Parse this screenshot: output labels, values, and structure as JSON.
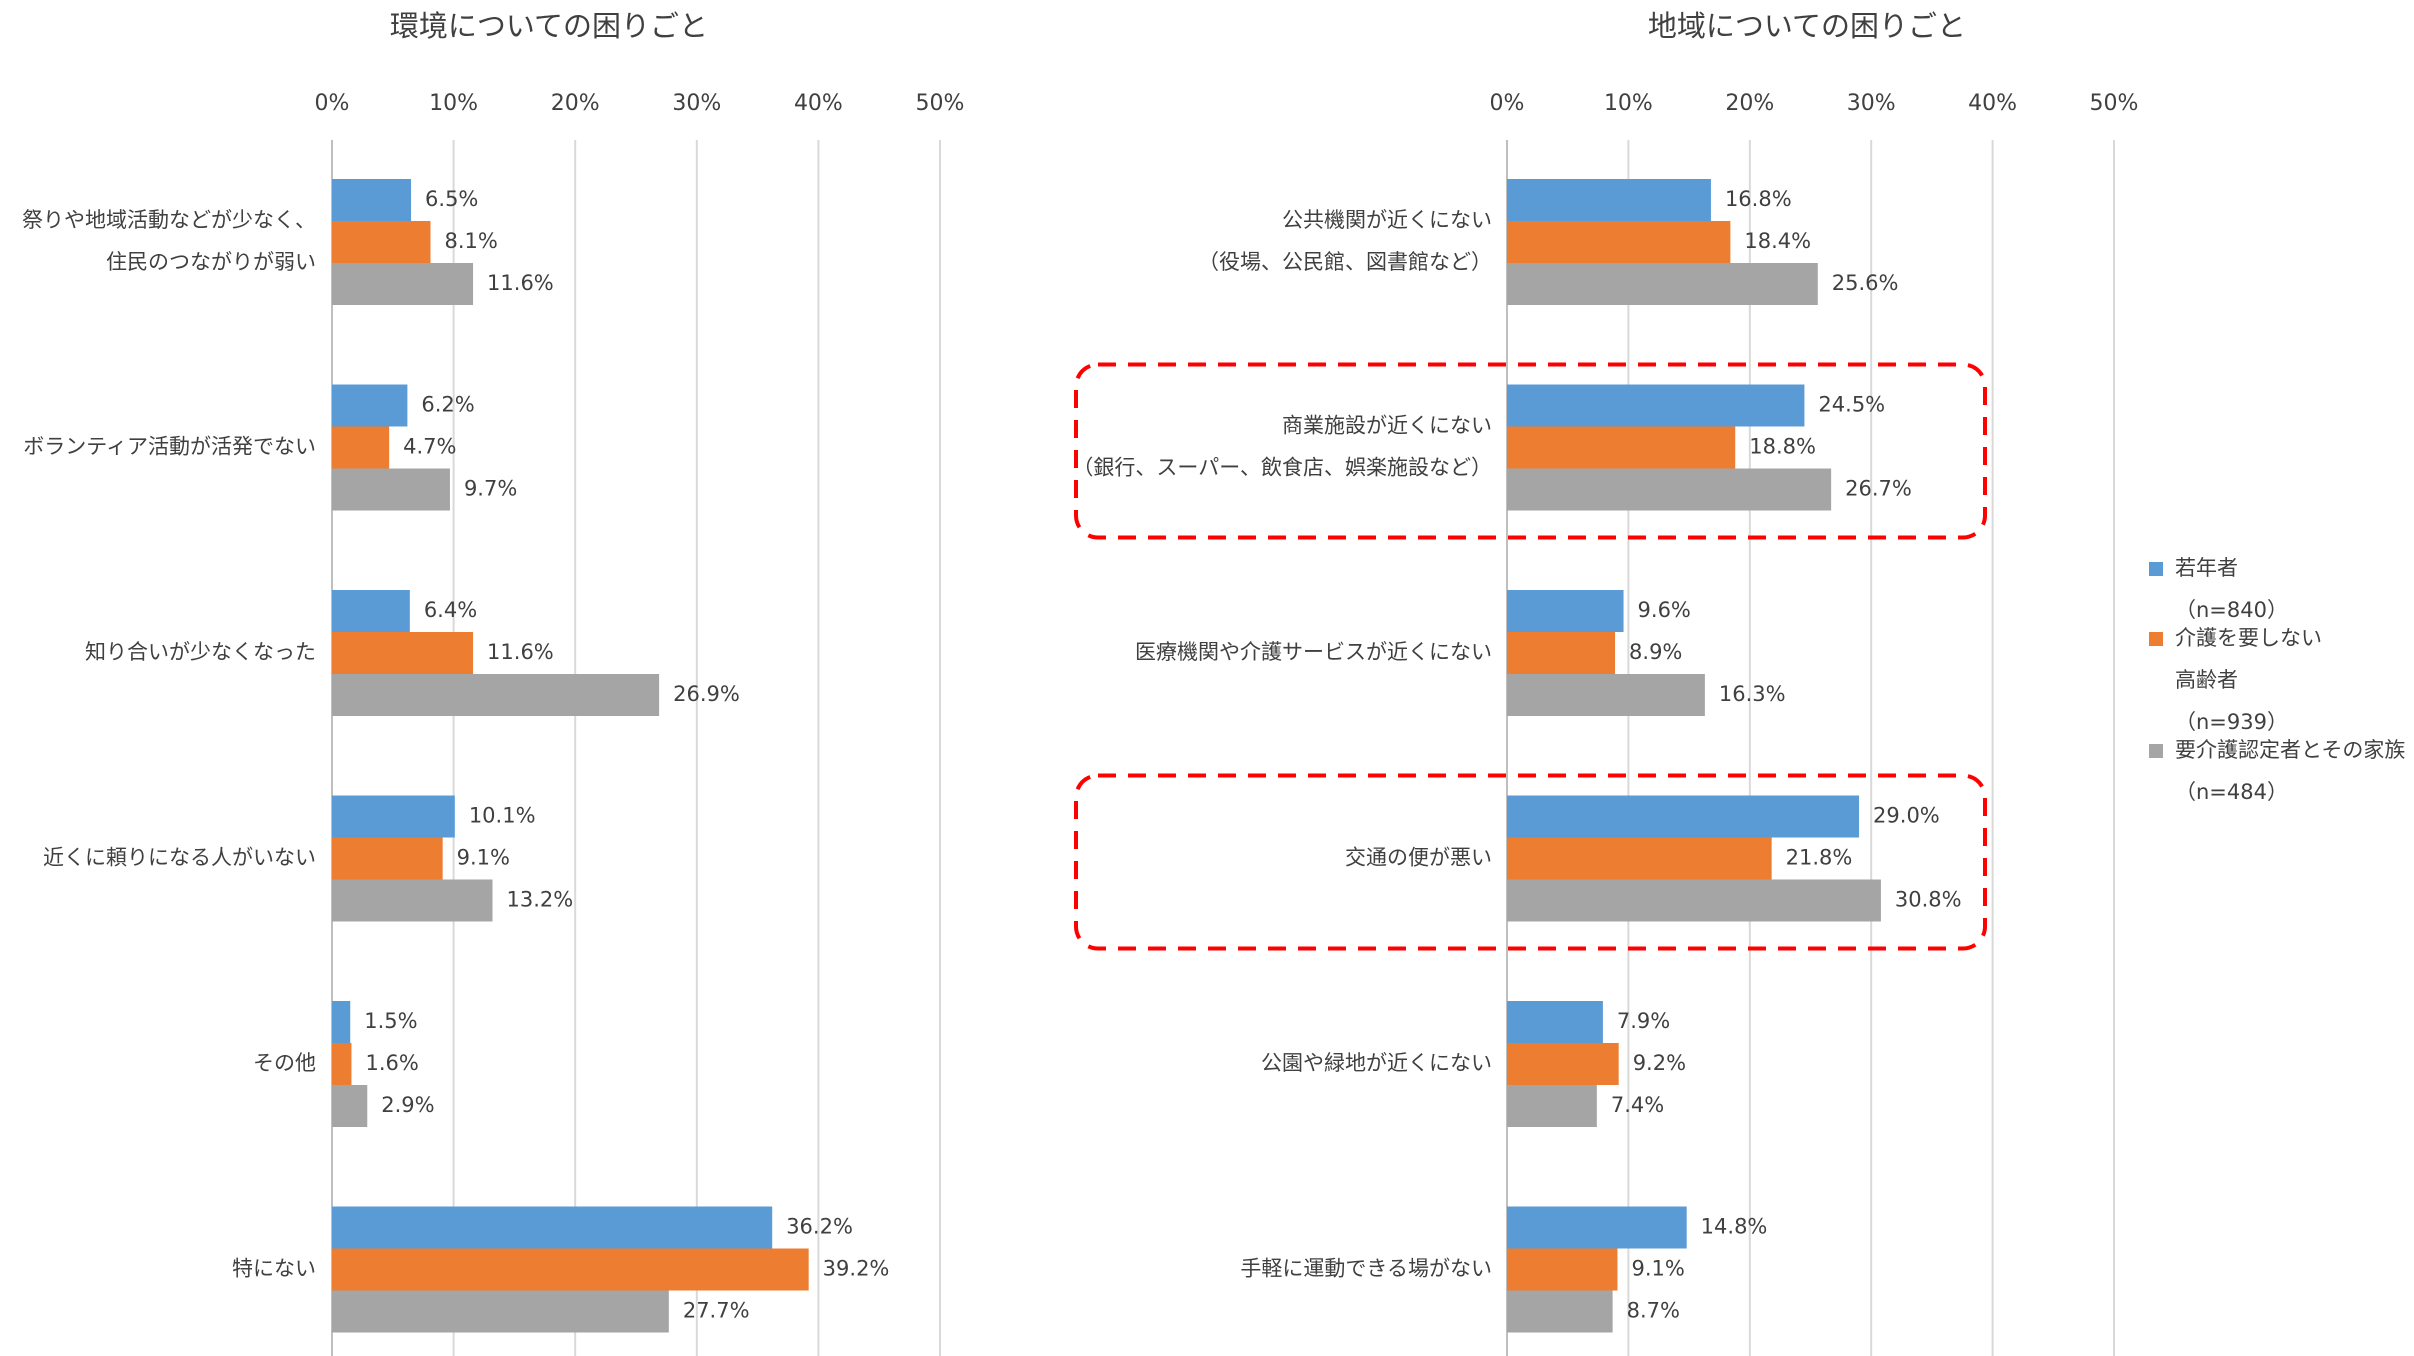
{
  "chart_data": [
    {
      "type": "bar",
      "orientation": "horizontal",
      "title": "環境についての困りごと",
      "categories": [
        [
          "祭りや地域活動などが少なく、",
          "住民のつながりが弱い"
        ],
        [
          "ボランティア活動が活発でない"
        ],
        [
          "知り合いが少なくなった"
        ],
        [
          "近くに頼りになる人がいない"
        ],
        [
          "その他"
        ],
        [
          "特にない"
        ]
      ],
      "series": [
        {
          "name": [
            "若年者"
          ],
          "n": "（n=840）",
          "color": "#5b9bd5",
          "values": [
            6.5,
            6.2,
            6.4,
            10.1,
            1.5,
            36.2
          ],
          "value_labels": [
            "6.5%",
            "6.2%",
            "6.4%",
            "10.1%",
            "1.5%",
            "36.2%"
          ]
        },
        {
          "name": [
            "介護を要しない",
            "高齢者"
          ],
          "n": "（n=939）",
          "color": "#ed7d31",
          "values": [
            8.1,
            4.7,
            11.6,
            9.1,
            1.6,
            39.2
          ],
          "value_labels": [
            "8.1%",
            "4.7%",
            "11.6%",
            "9.1%",
            "1.6%",
            "39.2%"
          ]
        },
        {
          "name": [
            "要介護認定者とその家族"
          ],
          "n": "（n=484）",
          "color": "#a5a5a5",
          "values": [
            11.6,
            9.7,
            26.9,
            13.2,
            2.9,
            27.7
          ],
          "value_labels": [
            "11.6%",
            "9.7%",
            "26.9%",
            "13.2%",
            "2.9%",
            "27.7%"
          ]
        }
      ],
      "xlim": [
        0,
        50
      ],
      "xticks": [
        {
          "value": 0,
          "label": "0%"
        },
        {
          "value": 10,
          "label": "10%"
        },
        {
          "value": 20,
          "label": "20%"
        },
        {
          "value": 30,
          "label": "30%"
        },
        {
          "value": 40,
          "label": "40%"
        },
        {
          "value": 50,
          "label": "50%"
        }
      ],
      "grid": true
    },
    {
      "type": "bar",
      "orientation": "horizontal",
      "title": "地域についての困りごと",
      "categories": [
        [
          "公共機関が近くにない",
          "（役場、公民館、図書館など）"
        ],
        [
          "商業施設が近くにない",
          "（銀行、スーパー、飲食店、娯楽施設など）"
        ],
        [
          "医療機関や介護サービスが近くにない"
        ],
        [
          "交通の便が悪い"
        ],
        [
          "公園や緑地が近くにない"
        ],
        [
          "手軽に運動できる場がない"
        ]
      ],
      "series": [
        {
          "name": [
            "若年者"
          ],
          "n": "（n=840）",
          "color": "#5b9bd5",
          "values": [
            16.8,
            24.5,
            9.6,
            29.0,
            7.9,
            14.8
          ],
          "value_labels": [
            "16.8%",
            "24.5%",
            "9.6%",
            "29.0%",
            "7.9%",
            "14.8%"
          ]
        },
        {
          "name": [
            "介護を要しない",
            "高齢者"
          ],
          "n": "（n=939）",
          "color": "#ed7d31",
          "values": [
            18.4,
            18.8,
            8.9,
            21.8,
            9.2,
            9.1
          ],
          "value_labels": [
            "18.4%",
            "18.8%",
            "8.9%",
            "21.8%",
            "9.2%",
            "9.1%"
          ]
        },
        {
          "name": [
            "要介護認定者とその家族"
          ],
          "n": "（n=484）",
          "color": "#a5a5a5",
          "values": [
            25.6,
            26.7,
            16.3,
            30.8,
            7.4,
            8.7
          ],
          "value_labels": [
            "25.6%",
            "26.7%",
            "16.3%",
            "30.8%",
            "7.4%",
            "8.7%"
          ]
        }
      ],
      "xlim": [
        0,
        50
      ],
      "xticks": [
        {
          "value": 0,
          "label": "0%"
        },
        {
          "value": 10,
          "label": "10%"
        },
        {
          "value": 20,
          "label": "20%"
        },
        {
          "value": 30,
          "label": "30%"
        },
        {
          "value": 40,
          "label": "40%"
        },
        {
          "value": 50,
          "label": "50%"
        }
      ],
      "grid": true,
      "highlighted": [
        1,
        3
      ],
      "legend": "right"
    }
  ]
}
